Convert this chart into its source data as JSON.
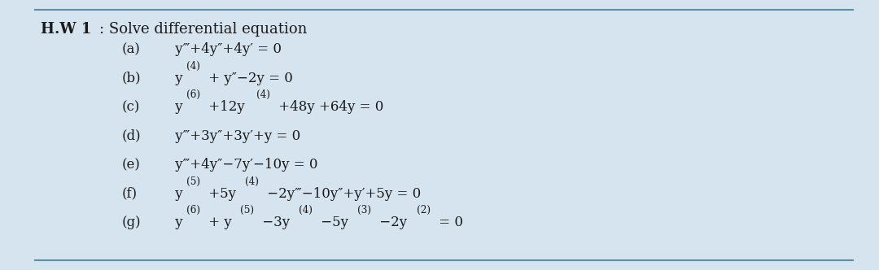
{
  "title": "H.W 1",
  "subtitle": ": Solve differential equation",
  "background_color": "#d6e4f0",
  "border_color": "#5a8fa8",
  "text_color": "#1a1a1a",
  "title_fontsize": 13,
  "eq_fontsize": 12,
  "equations": [
    {
      "label": "(a)",
      "parts": [
        {
          "text": " y‴+4y″+4y′ = 0",
          "style": "normal"
        }
      ]
    },
    {
      "label": "(b)",
      "parts": [
        {
          "text": " y",
          "style": "normal"
        },
        {
          "text": "(4)",
          "style": "super"
        },
        {
          "text": " + y″−2y = 0",
          "style": "normal"
        }
      ]
    },
    {
      "label": "(c)",
      "parts": [
        {
          "text": " y",
          "style": "normal"
        },
        {
          "text": "(6)",
          "style": "super"
        },
        {
          "text": " +12y",
          "style": "normal"
        },
        {
          "text": "(4)",
          "style": "super"
        },
        {
          "text": " +48y +64y = 0",
          "style": "normal"
        }
      ]
    },
    {
      "label": "(d)",
      "parts": [
        {
          "text": " y‴+3y″+3y′+y = 0",
          "style": "normal"
        }
      ]
    },
    {
      "label": "(e)",
      "parts": [
        {
          "text": " y‴+4y″−7y′−10y = 0",
          "style": "normal"
        }
      ]
    },
    {
      "label": "(f)",
      "parts": [
        {
          "text": " y",
          "style": "normal"
        },
        {
          "text": "(5)",
          "style": "super"
        },
        {
          "text": " +5y",
          "style": "normal"
        },
        {
          "text": "(4)",
          "style": "super"
        },
        {
          "text": " −2y‴−10y″+y′+5y = 0",
          "style": "normal"
        }
      ]
    },
    {
      "label": "(g)",
      "parts": [
        {
          "text": " y",
          "style": "normal"
        },
        {
          "text": "(6)",
          "style": "super"
        },
        {
          "text": " + y",
          "style": "normal"
        },
        {
          "text": "(5)",
          "style": "super"
        },
        {
          "text": " −3y",
          "style": "normal"
        },
        {
          "text": "(4)",
          "style": "super"
        },
        {
          "text": " −5y",
          "style": "normal"
        },
        {
          "text": "(3)",
          "style": "super"
        },
        {
          "text": " −2y",
          "style": "normal"
        },
        {
          "text": "(2)",
          "style": "super"
        },
        {
          "text": " = 0",
          "style": "normal"
        }
      ]
    }
  ]
}
